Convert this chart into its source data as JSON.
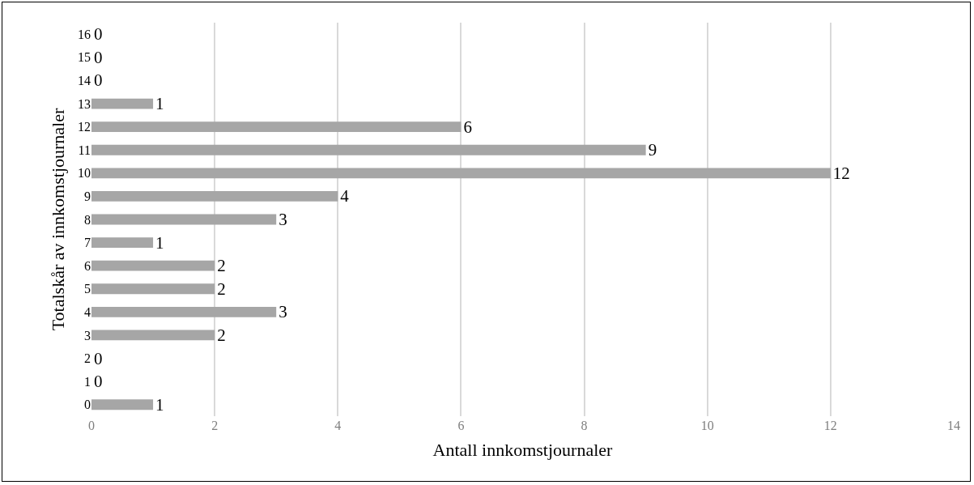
{
  "chart_data": {
    "type": "bar",
    "orientation": "horizontal",
    "xlabel": "Antall innkomstjournaler",
    "ylabel": "Totalskår av innkomstjournaler",
    "categories": [
      "16",
      "15",
      "14",
      "13",
      "12",
      "11",
      "10",
      "9",
      "8",
      "7",
      "6",
      "5",
      "4",
      "3",
      "2",
      "1",
      "0"
    ],
    "values": [
      0,
      0,
      0,
      1,
      6,
      9,
      12,
      4,
      3,
      1,
      2,
      2,
      3,
      2,
      0,
      0,
      1
    ],
    "color": "#a6a6a6",
    "xlim": [
      0,
      14
    ],
    "xticks": [
      0,
      2,
      4,
      6,
      8,
      10,
      12,
      14
    ],
    "grid": "x",
    "data_labels": true,
    "legend": false
  }
}
